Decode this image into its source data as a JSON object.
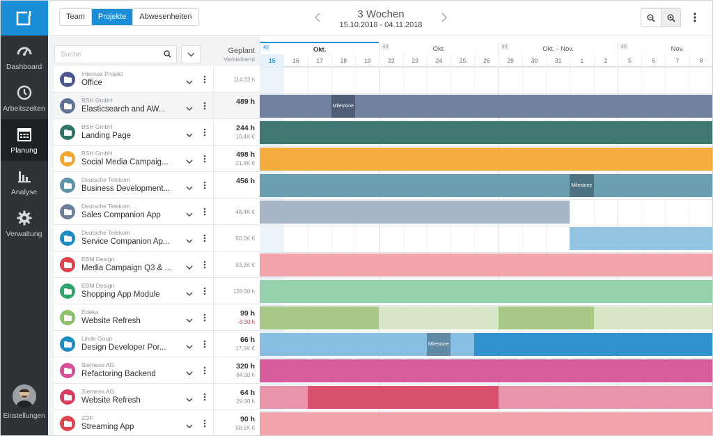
{
  "nav": {
    "items": [
      {
        "label": "Dashboard",
        "icon": "dashboard-icon"
      },
      {
        "label": "Arbeitszeiten",
        "icon": "clock-icon"
      },
      {
        "label": "Planung",
        "icon": "calendar-icon",
        "active": true
      },
      {
        "label": "Analyse",
        "icon": "bar-chart-icon"
      },
      {
        "label": "Verwaltung",
        "icon": "gear-icon"
      }
    ],
    "settings_label": "Einstellungen"
  },
  "toolbar": {
    "views": [
      "Team",
      "Projekte",
      "Abwesenheiten"
    ],
    "selected_view": "Projekte",
    "period_title": "3 Wochen",
    "period_range": "15.10.2018 - 04.11.2018"
  },
  "filter": {
    "search_placeholder": "Suche",
    "planned_header": "Geplant",
    "remaining_header": "Verbleibend"
  },
  "timeline": {
    "weeks": [
      {
        "number": "42",
        "month": "Okt.",
        "current": true
      },
      {
        "number": "43",
        "month": "Okt."
      },
      {
        "number": "44",
        "month": "Okt. - Nov."
      },
      {
        "number": "45",
        "month": "Nov."
      }
    ],
    "days": [
      "15",
      "16",
      "17",
      "18",
      "19",
      "22",
      "23",
      "24",
      "25",
      "26",
      "29",
      "30",
      "31",
      "1",
      "2",
      "5",
      "6",
      "7",
      "8"
    ],
    "today_index": 0,
    "milestone_label": "Milestone"
  },
  "projects": [
    {
      "client": "Internes Projekt",
      "name": "Office",
      "planned": "",
      "remaining": "114:33 h",
      "color": "#4a5790",
      "bars": [],
      "milestones": []
    },
    {
      "client": "BSH GmbH",
      "name": "Elasticsearch and AW...",
      "planned": "489 h",
      "remaining": "",
      "color": "#5f7494",
      "highlight": true,
      "bars": [
        {
          "from": 0,
          "to": 19,
          "color": "#7181a1"
        }
      ],
      "milestones": [
        3
      ]
    },
    {
      "client": "BSH GmbH",
      "name": "Landing Page",
      "planned": "244 h",
      "remaining": "19,4K €",
      "color": "#2f7468",
      "bars": [
        {
          "from": 0,
          "to": 19,
          "color": "#3f7870"
        }
      ],
      "milestones": []
    },
    {
      "client": "BSH GmbH",
      "name": "Social Media Campaig...",
      "planned": "498 h",
      "remaining": "21,9K €",
      "color": "#f3a630",
      "bars": [
        {
          "from": 0,
          "to": 19,
          "color": "#f5ae3e"
        }
      ],
      "milestones": []
    },
    {
      "client": "Deutsche Telekom",
      "name": "Business Development...",
      "planned": "456 h",
      "remaining": "",
      "color": "#5b93a8",
      "bars": [
        {
          "from": 0,
          "to": 19,
          "color": "#6b9fb2"
        }
      ],
      "milestones": [
        13
      ]
    },
    {
      "client": "Deutsche Telekom",
      "name": "Sales Companion App",
      "planned": "",
      "remaining": "48,4K €",
      "color": "#6d7f99",
      "bars": [
        {
          "from": 0,
          "to": 13,
          "color": "#a9b5c9"
        }
      ],
      "milestones": []
    },
    {
      "client": "Deutsche Telekom",
      "name": "Service Companion Ap...",
      "planned": "",
      "remaining": "50,0K €",
      "color": "#1b8fc5",
      "bars": [
        {
          "from": 13,
          "to": 19,
          "color": "#93c4e2"
        }
      ],
      "milestones": []
    },
    {
      "client": "EBM Design",
      "name": "Media Campaign Q3 & ...",
      "planned": "",
      "remaining": "93,3K €",
      "color": "#e0434d",
      "bars": [
        {
          "from": 0,
          "to": 19,
          "color": "#f2a4ab"
        }
      ],
      "milestones": []
    },
    {
      "client": "EBM Design",
      "name": "Shopping App Module",
      "planned": "",
      "remaining": "128:30 h",
      "color": "#2fa56c",
      "bars": [
        {
          "from": 0,
          "to": 19,
          "color": "#95d1ac"
        }
      ],
      "milestones": []
    },
    {
      "client": "Edeka",
      "name": "Website Refresh",
      "planned": "99 h",
      "remaining": "-3:30 h",
      "negative": true,
      "color": "#8cc06a",
      "bars": [
        {
          "from": 0,
          "to": 5,
          "color": "#a6c985"
        },
        {
          "from": 5,
          "to": 10,
          "color": "#d6e6c6"
        },
        {
          "from": 10,
          "to": 14,
          "color": "#a6c985"
        },
        {
          "from": 14,
          "to": 19,
          "color": "#d6e6c6"
        }
      ],
      "milestones": []
    },
    {
      "client": "Linde Goup",
      "name": "Design Developer Por...",
      "planned": "66 h",
      "remaining": "17,5K €",
      "color": "#1b8fc5",
      "bars": [
        {
          "from": 0,
          "to": 9,
          "color": "#86bfe3"
        },
        {
          "from": 9,
          "to": 19,
          "color": "#2e93ce"
        }
      ],
      "milestones": [
        7
      ]
    },
    {
      "client": "Siemens AG",
      "name": "Refactoring Backend",
      "planned": "320 h",
      "remaining": "84:30 h",
      "color": "#d94d97",
      "bars": [
        {
          "from": 0,
          "to": 19,
          "color": "#d65c9d"
        }
      ],
      "milestones": []
    },
    {
      "client": "Siemens AG",
      "name": "Website Refresh",
      "planned": "64 h",
      "remaining": "29:30 h",
      "color": "#d93c61",
      "bars": [
        {
          "from": 0,
          "to": 2,
          "color": "#e895ab"
        },
        {
          "from": 2,
          "to": 10,
          "color": "#d9506f"
        },
        {
          "from": 10,
          "to": 19,
          "color": "#e895ab"
        }
      ],
      "milestones": []
    },
    {
      "client": "ZDF",
      "name": "Streaming App",
      "planned": "90 h",
      "remaining": "58,1K €",
      "color": "#e0434d",
      "bars": [
        {
          "from": 0,
          "to": 19,
          "color": "#f2a4ab"
        }
      ],
      "milestones": []
    }
  ]
}
